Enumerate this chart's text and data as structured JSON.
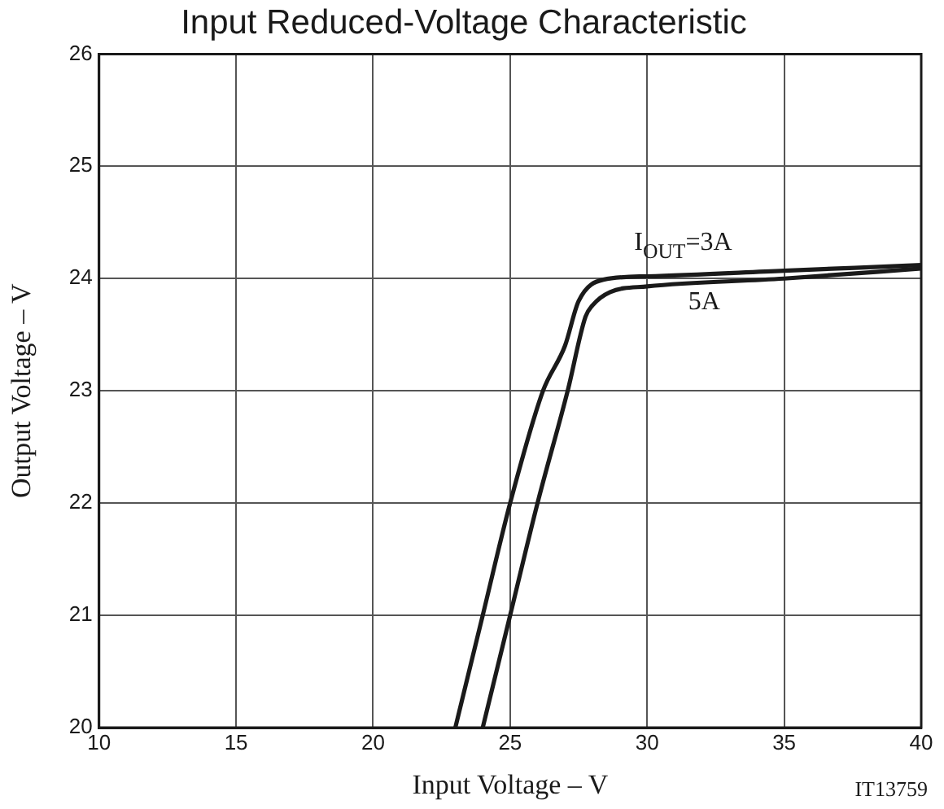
{
  "chart_data": {
    "type": "line",
    "title": "Input Reduced-Voltage Characteristic",
    "xlabel": "Input Voltage – V",
    "ylabel": "Output Voltage – V",
    "xlim": [
      10,
      40
    ],
    "xticks": [
      10,
      15,
      20,
      25,
      30,
      35,
      40
    ],
    "ylim": [
      20,
      26
    ],
    "yticks": [
      20,
      21,
      22,
      23,
      24,
      25,
      26
    ],
    "grid": true,
    "legend": false,
    "marker": "none",
    "line_style": "solid",
    "series": [
      {
        "name": "I$_{OUT}$=3A",
        "color": "#1a1a1a",
        "x": [
          23.0,
          24.0,
          25.0,
          26.2,
          27.0,
          27.5,
          28.4,
          30,
          35,
          40
        ],
        "values": [
          20,
          21,
          22,
          23,
          23.4,
          23.8,
          23.99,
          24.02,
          24.07,
          24.12
        ]
      },
      {
        "name": "5A",
        "color": "#1a1a1a",
        "x": [
          24.0,
          25.0,
          26.0,
          27.1,
          27.75,
          28.0,
          28.65,
          30,
          35,
          40
        ],
        "values": [
          20,
          21,
          22,
          23,
          23.66,
          23.76,
          23.88,
          23.93,
          24.0,
          24.09
        ]
      }
    ],
    "annotations": [
      "IT13759"
    ]
  }
}
